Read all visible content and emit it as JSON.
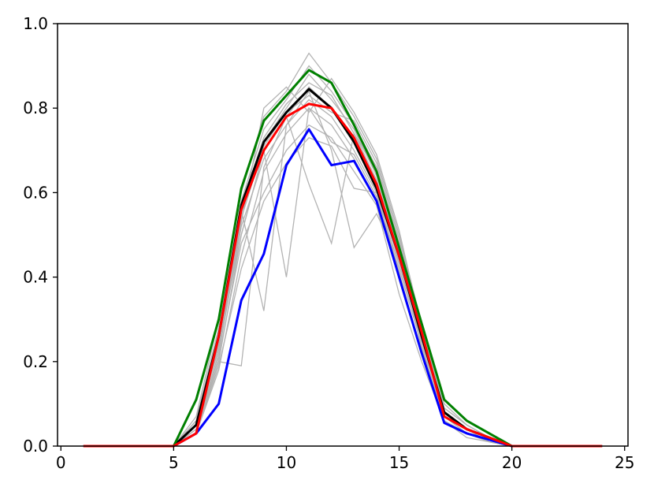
{
  "chart_data": {
    "type": "line",
    "title": "",
    "xlabel": "",
    "ylabel": "",
    "xlim": [
      -0.15,
      25.15
    ],
    "ylim": [
      0.0,
      1.0
    ],
    "xticks": [
      0,
      5,
      10,
      15,
      20,
      25
    ],
    "yticks": [
      0.0,
      0.2,
      0.4,
      0.6,
      0.8,
      1.0
    ],
    "xtick_labels": [
      "0",
      "5",
      "10",
      "15",
      "20",
      "25"
    ],
    "ytick_labels": [
      "0.0",
      "0.2",
      "0.4",
      "0.6",
      "0.8",
      "1.0"
    ],
    "grid": false,
    "legend": "none",
    "x": [
      1,
      2,
      3,
      4,
      5,
      6,
      7,
      8,
      9,
      10,
      11,
      12,
      13,
      14,
      15,
      16,
      17,
      18,
      19,
      20,
      21,
      22,
      23,
      24
    ],
    "background_series": [
      [
        0,
        0,
        0,
        0,
        0,
        0.03,
        0.2,
        0.5,
        0.7,
        0.78,
        0.85,
        0.8,
        0.72,
        0.62,
        0.45,
        0.26,
        0.07,
        0.03,
        0.01,
        0,
        0,
        0,
        0,
        0
      ],
      [
        0,
        0,
        0,
        0,
        0,
        0.05,
        0.25,
        0.55,
        0.72,
        0.8,
        0.88,
        0.82,
        0.75,
        0.64,
        0.47,
        0.27,
        0.08,
        0.04,
        0.02,
        0,
        0,
        0,
        0,
        0
      ],
      [
        0,
        0,
        0,
        0,
        0,
        0.06,
        0.28,
        0.58,
        0.75,
        0.82,
        0.9,
        0.84,
        0.76,
        0.66,
        0.48,
        0.28,
        0.09,
        0.05,
        0.02,
        0,
        0,
        0,
        0,
        0
      ],
      [
        0,
        0,
        0,
        0,
        0,
        0.04,
        0.22,
        0.52,
        0.68,
        0.76,
        0.82,
        0.78,
        0.7,
        0.6,
        0.44,
        0.25,
        0.07,
        0.03,
        0.01,
        0,
        0,
        0,
        0,
        0
      ],
      [
        0,
        0,
        0,
        0,
        0,
        0.07,
        0.3,
        0.6,
        0.78,
        0.84,
        0.93,
        0.86,
        0.78,
        0.68,
        0.5,
        0.29,
        0.1,
        0.05,
        0.02,
        0,
        0,
        0,
        0,
        0
      ],
      [
        0,
        0,
        0,
        0,
        0,
        0.03,
        0.18,
        0.45,
        0.65,
        0.74,
        0.8,
        0.76,
        0.68,
        0.58,
        0.42,
        0.24,
        0.06,
        0.03,
        0.01,
        0,
        0,
        0,
        0,
        0
      ],
      [
        0,
        0,
        0,
        0,
        0,
        0.05,
        0.24,
        0.5,
        0.7,
        0.4,
        0.8,
        0.72,
        0.69,
        0.59,
        0.43,
        0.25,
        0.07,
        0.03,
        0.01,
        0,
        0,
        0,
        0,
        0
      ],
      [
        0,
        0,
        0,
        0,
        0,
        0.06,
        0.26,
        0.56,
        0.32,
        0.76,
        0.84,
        0.7,
        0.47,
        0.55,
        0.44,
        0.26,
        0.08,
        0.04,
        0.01,
        0,
        0,
        0,
        0,
        0
      ],
      [
        0,
        0,
        0,
        0,
        0,
        0.04,
        0.2,
        0.19,
        0.66,
        0.78,
        0.62,
        0.48,
        0.74,
        0.63,
        0.46,
        0.27,
        0.08,
        0.04,
        0.02,
        0,
        0,
        0,
        0,
        0
      ],
      [
        0,
        0,
        0,
        0,
        0,
        0.05,
        0.23,
        0.53,
        0.8,
        0.85,
        0.79,
        0.87,
        0.79,
        0.69,
        0.51,
        0.28,
        0.09,
        0.05,
        0.02,
        0,
        0,
        0,
        0,
        0
      ],
      [
        0,
        0,
        0,
        0,
        0,
        0.04,
        0.21,
        0.48,
        0.6,
        0.7,
        0.76,
        0.73,
        0.65,
        0.57,
        0.36,
        0.2,
        0.06,
        0.03,
        0.01,
        0,
        0,
        0,
        0,
        0
      ],
      [
        0,
        0,
        0,
        0,
        0,
        0.06,
        0.27,
        0.57,
        0.73,
        0.81,
        0.86,
        0.83,
        0.74,
        0.65,
        0.46,
        0.23,
        0.07,
        0.04,
        0.01,
        0,
        0,
        0,
        0,
        0
      ],
      [
        0,
        0,
        0,
        0,
        0,
        0.03,
        0.19,
        0.42,
        0.58,
        0.67,
        0.73,
        0.71,
        0.61,
        0.6,
        0.41,
        0.22,
        0.06,
        0.02,
        0.01,
        0,
        0,
        0,
        0,
        0
      ],
      [
        0,
        0,
        0,
        0,
        0,
        0.05,
        0.24,
        0.54,
        0.71,
        0.79,
        0.83,
        0.79,
        0.77,
        0.67,
        0.49,
        0.29,
        0.08,
        0.04,
        0.02,
        0,
        0,
        0,
        0,
        0
      ]
    ],
    "series": [
      {
        "color": "#000000",
        "values": [
          0,
          0,
          0,
          0,
          0,
          0.05,
          0.26,
          0.57,
          0.72,
          0.79,
          0.845,
          0.8,
          0.72,
          0.61,
          0.45,
          0.26,
          0.08,
          0.04,
          0.02,
          0,
          0,
          0,
          0,
          0
        ]
      },
      {
        "color": "#008000",
        "values": [
          0,
          0,
          0,
          0,
          0,
          0.11,
          0.3,
          0.61,
          0.77,
          0.83,
          0.89,
          0.86,
          0.76,
          0.65,
          0.47,
          0.29,
          0.11,
          0.06,
          0.03,
          0,
          0,
          0,
          0,
          0
        ]
      },
      {
        "color": "#0000ff",
        "values": [
          0,
          0,
          0,
          0,
          0,
          0.03,
          0.1,
          0.345,
          0.455,
          0.665,
          0.75,
          0.665,
          0.675,
          0.58,
          0.4,
          0.22,
          0.055,
          0.03,
          0.015,
          0,
          0,
          0,
          0,
          0
        ]
      },
      {
        "color": "#ff0000",
        "values": [
          0,
          0,
          0,
          0,
          0,
          0.03,
          0.26,
          0.56,
          0.7,
          0.78,
          0.81,
          0.8,
          0.73,
          0.62,
          0.45,
          0.27,
          0.07,
          0.04,
          0.02,
          0,
          0,
          0,
          0,
          0
        ]
      }
    ]
  }
}
